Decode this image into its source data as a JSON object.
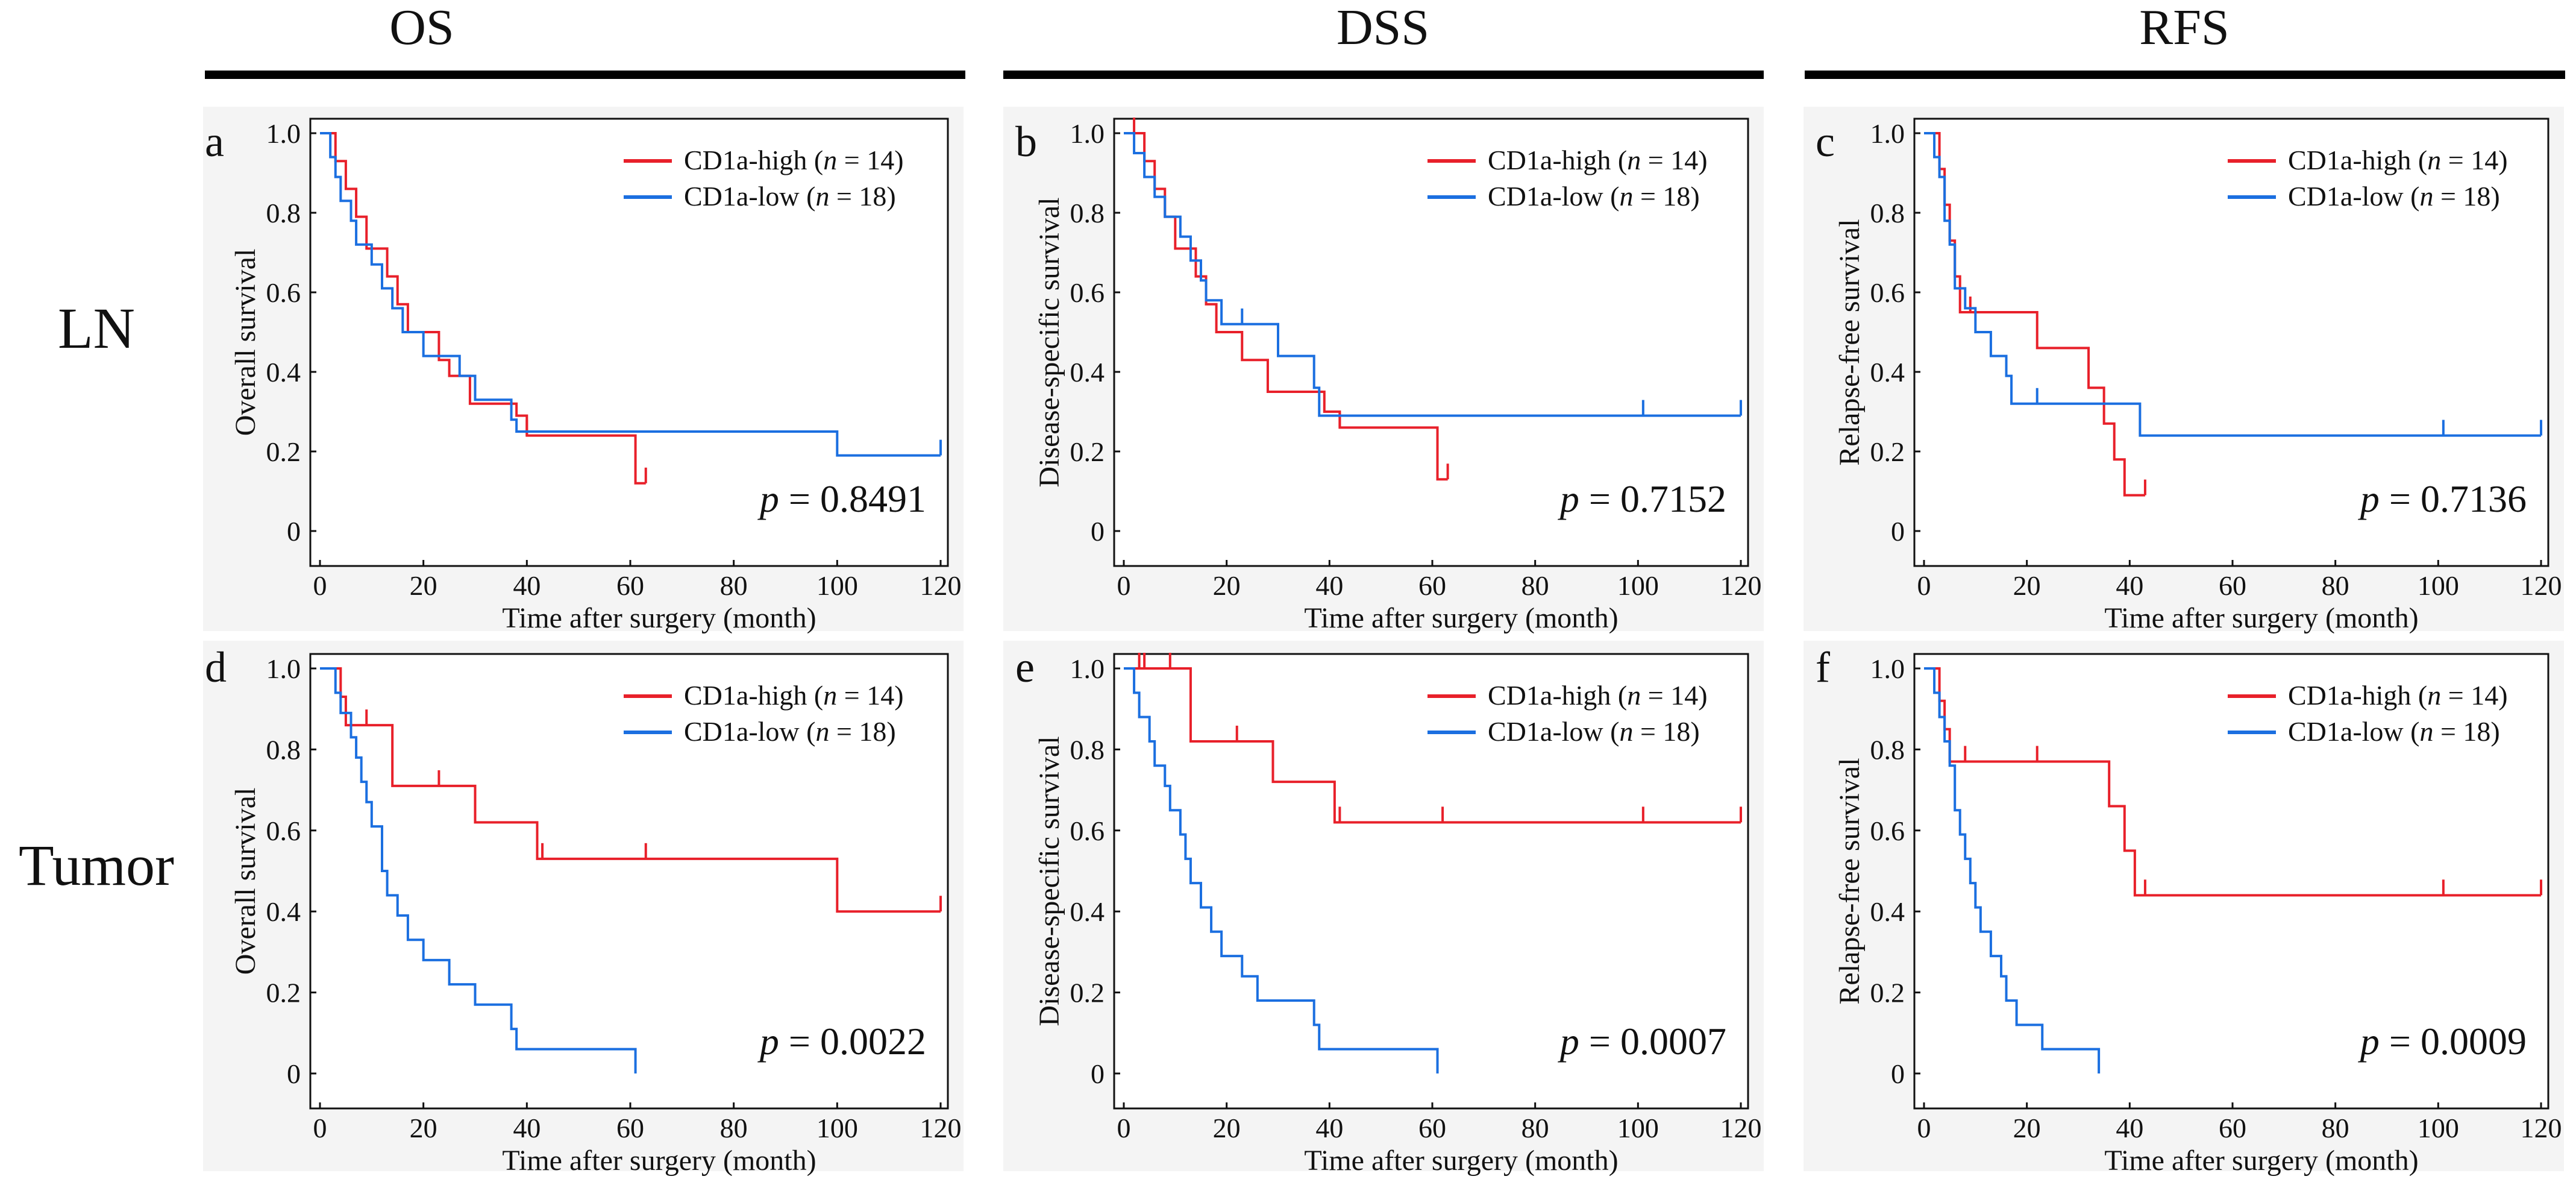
{
  "column_titles": [
    "OS",
    "DSS",
    "RFS"
  ],
  "row_labels": [
    "LN",
    "Tumor"
  ],
  "legend": {
    "high_prefix": "CD1a-high (",
    "low_prefix": "CD1a-low  (",
    "n_label": "n",
    "high_count": " = 14)",
    "low_count": " = 18)"
  },
  "colors": {
    "high": "#e8202a",
    "low": "#1b6fe0",
    "axis": "#111111",
    "panel_bg": "#f4f4f4"
  },
  "p_label": "p",
  "chart_data": [
    {
      "id": "a",
      "letter": "a",
      "type": "line",
      "subtype": "kaplan-meier",
      "xlabel": "Time after surgery (month)",
      "ylabel": "Overall survival",
      "xlim": [
        0,
        120
      ],
      "ylim": [
        0,
        1
      ],
      "xticks": [
        "0",
        "20",
        "40",
        "60",
        "80",
        "100",
        "120"
      ],
      "yticks": [
        "0",
        "0.2",
        "0.4",
        "0.6",
        "0.8",
        "1.0"
      ],
      "p_value": " = 0.8491",
      "legend_position": "top-right",
      "series": [
        {
          "name": "CD1a-high (n = 14)",
          "group": "high",
          "steps": [
            [
              0,
              1.0
            ],
            [
              3,
              0.93
            ],
            [
              5,
              0.86
            ],
            [
              7,
              0.79
            ],
            [
              9,
              0.71
            ],
            [
              13,
              0.64
            ],
            [
              15,
              0.57
            ],
            [
              17,
              0.5
            ],
            [
              23,
              0.43
            ],
            [
              25,
              0.39
            ],
            [
              29,
              0.32
            ],
            [
              38,
              0.29
            ],
            [
              40,
              0.24
            ],
            [
              61,
              0.12
            ],
            [
              63,
              0.12
            ]
          ],
          "censors": [
            [
              40,
              0.24
            ],
            [
              63,
              0.12
            ]
          ]
        },
        {
          "name": "CD1a-low  (n = 18)",
          "group": "low",
          "steps": [
            [
              0,
              1.0
            ],
            [
              2,
              0.94
            ],
            [
              3,
              0.89
            ],
            [
              4,
              0.83
            ],
            [
              6,
              0.78
            ],
            [
              7,
              0.72
            ],
            [
              10,
              0.67
            ],
            [
              12,
              0.61
            ],
            [
              14,
              0.56
            ],
            [
              16,
              0.5
            ],
            [
              20,
              0.44
            ],
            [
              27,
              0.39
            ],
            [
              30,
              0.33
            ],
            [
              37,
              0.28
            ],
            [
              38,
              0.25
            ],
            [
              100,
              0.19
            ],
            [
              120,
              0.19
            ]
          ],
          "censors": [
            [
              120,
              0.19
            ]
          ]
        }
      ]
    },
    {
      "id": "b",
      "letter": "b",
      "type": "line",
      "subtype": "kaplan-meier",
      "xlabel": "Time after surgery (month)",
      "ylabel": "Disease-specific survival",
      "xlim": [
        0,
        120
      ],
      "ylim": [
        0,
        1
      ],
      "xticks": [
        "0",
        "20",
        "40",
        "60",
        "80",
        "100",
        "120"
      ],
      "yticks": [
        "0",
        "0.2",
        "0.4",
        "0.6",
        "0.8",
        "1.0"
      ],
      "p_value": " = 0.7152",
      "legend_position": "top-right",
      "series": [
        {
          "name": "CD1a-high (n = 14)",
          "group": "high",
          "steps": [
            [
              0,
              1.0
            ],
            [
              4,
              0.93
            ],
            [
              6,
              0.86
            ],
            [
              8,
              0.79
            ],
            [
              10,
              0.71
            ],
            [
              14,
              0.64
            ],
            [
              16,
              0.57
            ],
            [
              18,
              0.5
            ],
            [
              23,
              0.43
            ],
            [
              28,
              0.35
            ],
            [
              39,
              0.3
            ],
            [
              42,
              0.26
            ],
            [
              61,
              0.13
            ],
            [
              63,
              0.13
            ]
          ],
          "censors": [
            [
              2,
              1.0
            ],
            [
              42,
              0.26
            ],
            [
              63,
              0.13
            ]
          ]
        },
        {
          "name": "CD1a-low  (n = 18)",
          "group": "low",
          "steps": [
            [
              0,
              1.0
            ],
            [
              2,
              0.95
            ],
            [
              4,
              0.89
            ],
            [
              6,
              0.84
            ],
            [
              8,
              0.79
            ],
            [
              11,
              0.74
            ],
            [
              13,
              0.68
            ],
            [
              15,
              0.63
            ],
            [
              16,
              0.58
            ],
            [
              19,
              0.52
            ],
            [
              30,
              0.44
            ],
            [
              37,
              0.36
            ],
            [
              38,
              0.29
            ],
            [
              120,
              0.29
            ]
          ],
          "censors": [
            [
              23,
              0.52
            ],
            [
              101,
              0.29
            ],
            [
              120,
              0.29
            ]
          ]
        }
      ]
    },
    {
      "id": "c",
      "letter": "c",
      "type": "line",
      "subtype": "kaplan-meier",
      "xlabel": "Time after surgery (month)",
      "ylabel": "Relapse-free survival",
      "xlim": [
        0,
        120
      ],
      "ylim": [
        0,
        1
      ],
      "xticks": [
        "0",
        "20",
        "40",
        "60",
        "80",
        "100",
        "120"
      ],
      "yticks": [
        "0",
        "0.2",
        "0.4",
        "0.6",
        "0.8",
        "1.0"
      ],
      "p_value": " = 0.7136",
      "legend_position": "top-right",
      "series": [
        {
          "name": "CD1a-high (n = 14)",
          "group": "high",
          "steps": [
            [
              0,
              1.0
            ],
            [
              3,
              0.91
            ],
            [
              4,
              0.82
            ],
            [
              5,
              0.73
            ],
            [
              6,
              0.64
            ],
            [
              7,
              0.55
            ],
            [
              15,
              0.55
            ],
            [
              22,
              0.46
            ],
            [
              32,
              0.36
            ],
            [
              35,
              0.27
            ],
            [
              37,
              0.18
            ],
            [
              39,
              0.09
            ],
            [
              43,
              0.09
            ]
          ],
          "censors": [
            [
              9,
              0.55
            ],
            [
              43,
              0.09
            ]
          ]
        },
        {
          "name": "CD1a-low  (n = 18)",
          "group": "low",
          "steps": [
            [
              0,
              1.0
            ],
            [
              2,
              0.94
            ],
            [
              3,
              0.89
            ],
            [
              4,
              0.78
            ],
            [
              5,
              0.72
            ],
            [
              6,
              0.61
            ],
            [
              8,
              0.56
            ],
            [
              10,
              0.5
            ],
            [
              13,
              0.44
            ],
            [
              16,
              0.39
            ],
            [
              17,
              0.32
            ],
            [
              42,
              0.24
            ],
            [
              120,
              0.24
            ]
          ],
          "censors": [
            [
              22,
              0.32
            ],
            [
              101,
              0.24
            ],
            [
              120,
              0.24
            ]
          ]
        }
      ]
    },
    {
      "id": "d",
      "letter": "d",
      "type": "line",
      "subtype": "kaplan-meier",
      "xlabel": "Time after surgery (month)",
      "ylabel": "Overall survival",
      "xlim": [
        0,
        120
      ],
      "ylim": [
        0,
        1
      ],
      "xticks": [
        "0",
        "20",
        "40",
        "60",
        "80",
        "100",
        "120"
      ],
      "yticks": [
        "0",
        "0.2",
        "0.4",
        "0.6",
        "0.8",
        "1.0"
      ],
      "p_value": " = 0.0022",
      "legend_position": "top-right",
      "series": [
        {
          "name": "CD1a-high (n = 14)",
          "group": "high",
          "steps": [
            [
              0,
              1.0
            ],
            [
              4,
              0.93
            ],
            [
              5,
              0.86
            ],
            [
              14,
              0.71
            ],
            [
              30,
              0.62
            ],
            [
              42,
              0.53
            ],
            [
              100,
              0.4
            ],
            [
              120,
              0.4
            ]
          ],
          "censors": [
            [
              9,
              0.86
            ],
            [
              23,
              0.71
            ],
            [
              43,
              0.53
            ],
            [
              63,
              0.53
            ],
            [
              120,
              0.4
            ]
          ]
        },
        {
          "name": "CD1a-low  (n = 18)",
          "group": "low",
          "steps": [
            [
              0,
              1.0
            ],
            [
              3,
              0.94
            ],
            [
              4,
              0.89
            ],
            [
              6,
              0.83
            ],
            [
              7,
              0.78
            ],
            [
              8,
              0.72
            ],
            [
              9,
              0.67
            ],
            [
              10,
              0.61
            ],
            [
              12,
              0.5
            ],
            [
              13,
              0.44
            ],
            [
              15,
              0.39
            ],
            [
              17,
              0.33
            ],
            [
              20,
              0.28
            ],
            [
              25,
              0.22
            ],
            [
              30,
              0.17
            ],
            [
              37,
              0.11
            ],
            [
              38,
              0.06
            ],
            [
              61,
              0.0
            ]
          ],
          "censors": []
        }
      ]
    },
    {
      "id": "e",
      "letter": "e",
      "type": "line",
      "subtype": "kaplan-meier",
      "xlabel": "Time after surgery (month)",
      "ylabel": "Disease-specific survival",
      "xlim": [
        0,
        120
      ],
      "ylim": [
        0,
        1
      ],
      "xticks": [
        "0",
        "20",
        "40",
        "60",
        "80",
        "100",
        "120"
      ],
      "yticks": [
        "0",
        "0.2",
        "0.4",
        "0.6",
        "0.8",
        "1.0"
      ],
      "p_value": " = 0.0007",
      "legend_position": "top-right",
      "series": [
        {
          "name": "CD1a-high (n = 14)",
          "group": "high",
          "steps": [
            [
              0,
              1.0
            ],
            [
              13,
              0.82
            ],
            [
              29,
              0.72
            ],
            [
              41,
              0.62
            ],
            [
              120,
              0.62
            ]
          ],
          "censors": [
            [
              3,
              1.0
            ],
            [
              4,
              1.0
            ],
            [
              9,
              1.0
            ],
            [
              22,
              0.82
            ],
            [
              42,
              0.62
            ],
            [
              62,
              0.62
            ],
            [
              101,
              0.62
            ],
            [
              120,
              0.62
            ]
          ]
        },
        {
          "name": "CD1a-low  (n = 18)",
          "group": "low",
          "steps": [
            [
              0,
              1.0
            ],
            [
              2,
              0.94
            ],
            [
              3,
              0.88
            ],
            [
              5,
              0.82
            ],
            [
              6,
              0.76
            ],
            [
              8,
              0.71
            ],
            [
              9,
              0.65
            ],
            [
              11,
              0.59
            ],
            [
              12,
              0.53
            ],
            [
              13,
              0.47
            ],
            [
              15,
              0.41
            ],
            [
              17,
              0.35
            ],
            [
              19,
              0.29
            ],
            [
              23,
              0.24
            ],
            [
              26,
              0.18
            ],
            [
              37,
              0.12
            ],
            [
              38,
              0.06
            ],
            [
              61,
              0.0
            ]
          ],
          "censors": []
        }
      ]
    },
    {
      "id": "f",
      "letter": "f",
      "type": "line",
      "subtype": "kaplan-meier",
      "xlabel": "Time after surgery (month)",
      "ylabel": "Relapse-free survival",
      "xlim": [
        0,
        120
      ],
      "ylim": [
        0,
        1
      ],
      "xticks": [
        "0",
        "20",
        "40",
        "60",
        "80",
        "100",
        "120"
      ],
      "yticks": [
        "0",
        "0.2",
        "0.4",
        "0.6",
        "0.8",
        "1.0"
      ],
      "p_value": " = 0.0009",
      "legend_position": "top-right",
      "series": [
        {
          "name": "CD1a-high (n = 14)",
          "group": "high",
          "steps": [
            [
              0,
              1.0
            ],
            [
              3,
              0.92
            ],
            [
              4,
              0.85
            ],
            [
              5,
              0.77
            ],
            [
              36,
              0.66
            ],
            [
              39,
              0.55
            ],
            [
              41,
              0.44
            ],
            [
              120,
              0.44
            ]
          ],
          "censors": [
            [
              8,
              0.77
            ],
            [
              22,
              0.77
            ],
            [
              43,
              0.44
            ],
            [
              101,
              0.44
            ],
            [
              120,
              0.44
            ]
          ]
        },
        {
          "name": "CD1a-low  (n = 18)",
          "group": "low",
          "steps": [
            [
              0,
              1.0
            ],
            [
              2,
              0.94
            ],
            [
              3,
              0.88
            ],
            [
              4,
              0.82
            ],
            [
              5,
              0.76
            ],
            [
              6,
              0.65
            ],
            [
              7,
              0.59
            ],
            [
              8,
              0.53
            ],
            [
              9,
              0.47
            ],
            [
              10,
              0.41
            ],
            [
              11,
              0.35
            ],
            [
              13,
              0.29
            ],
            [
              15,
              0.24
            ],
            [
              16,
              0.18
            ],
            [
              18,
              0.12
            ],
            [
              23,
              0.06
            ],
            [
              34,
              0.0
            ]
          ],
          "censors": []
        }
      ]
    }
  ]
}
